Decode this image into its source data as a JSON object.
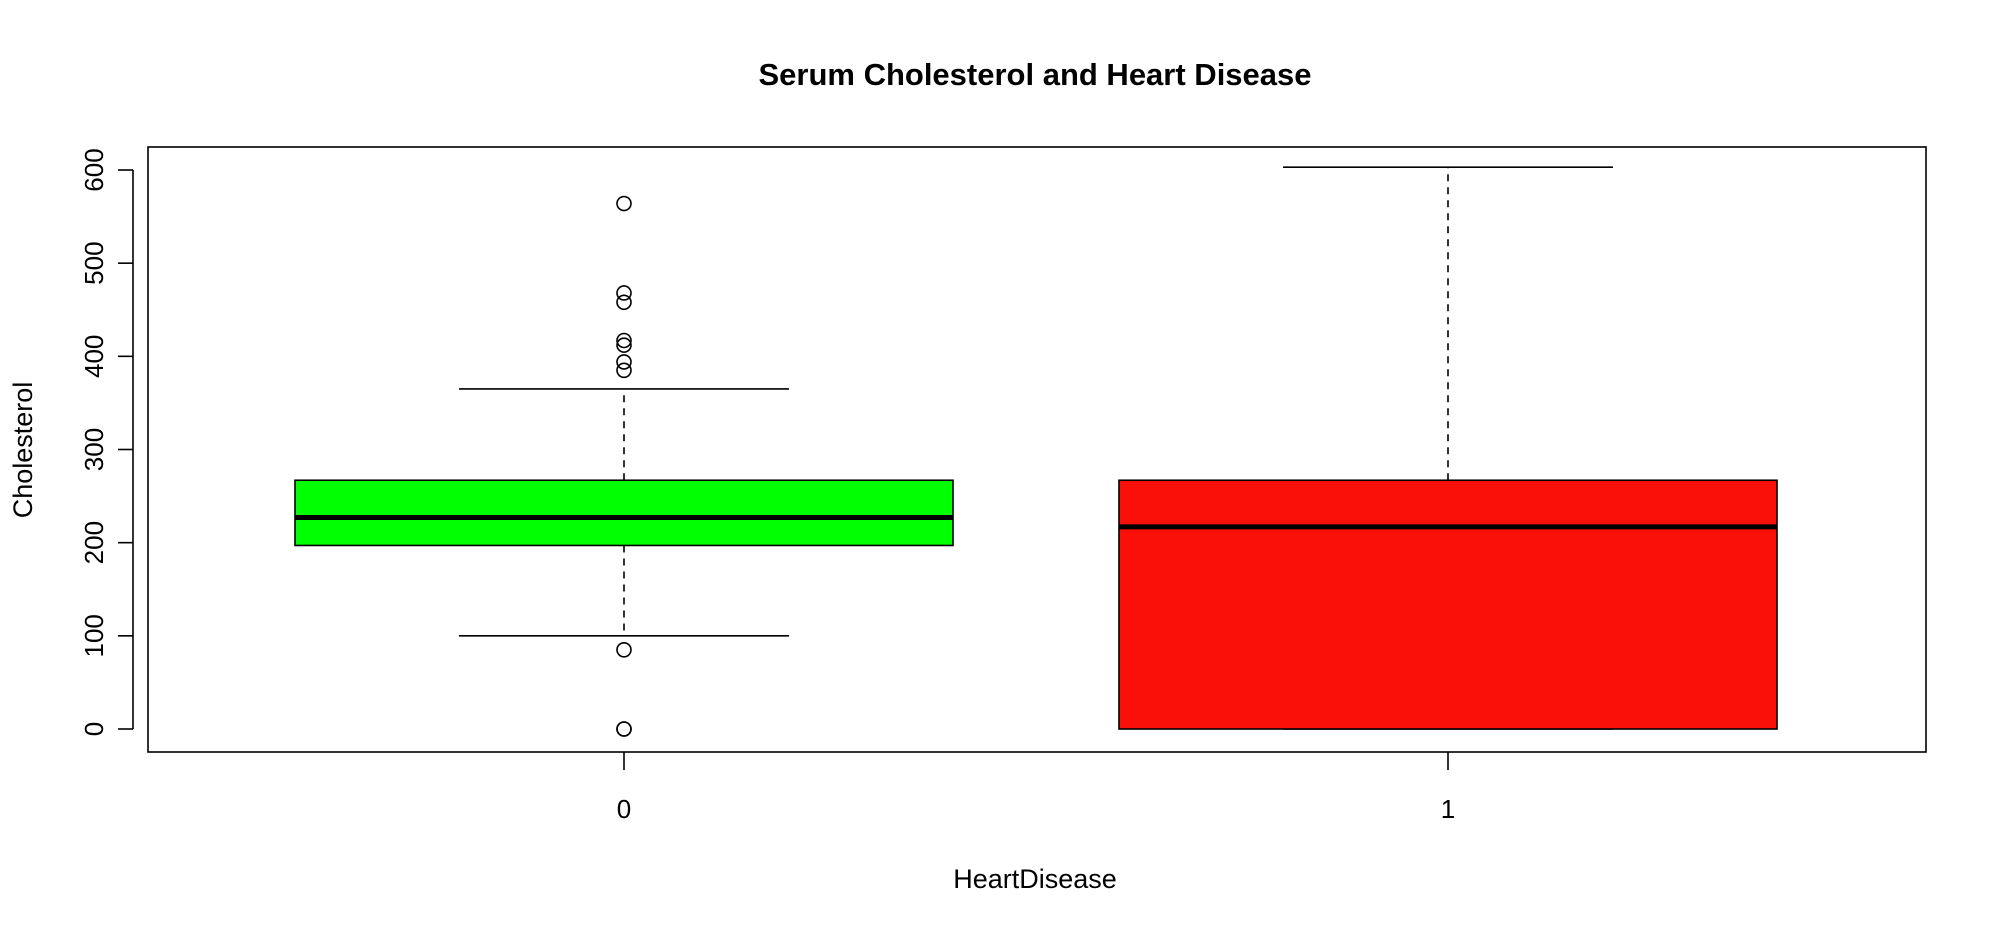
{
  "chart_data": {
    "type": "box",
    "title": "Serum Cholesterol and Heart Disease",
    "xlabel": "HeartDisease",
    "ylabel": "Cholesterol",
    "categories": [
      "0",
      "1"
    ],
    "ylim": [
      -25,
      625
    ],
    "yticks": [
      0,
      100,
      200,
      300,
      400,
      500,
      600
    ],
    "ytick_labels": [
      "0",
      "100",
      "200",
      "300",
      "400",
      "500",
      "600"
    ],
    "grid": false,
    "boxes": [
      {
        "category": "0",
        "fill": "#00ff00",
        "whisker_low": 100,
        "q1": 197,
        "median": 227,
        "q3": 267,
        "whisker_high": 365,
        "outliers": [
          564,
          468,
          458,
          417,
          412,
          394,
          385,
          85,
          0,
          0
        ]
      },
      {
        "category": "1",
        "fill": "#fa1008",
        "whisker_low": 0,
        "q1": 0,
        "median": 217,
        "q3": 267,
        "whisker_high": 603,
        "outliers": []
      }
    ]
  }
}
